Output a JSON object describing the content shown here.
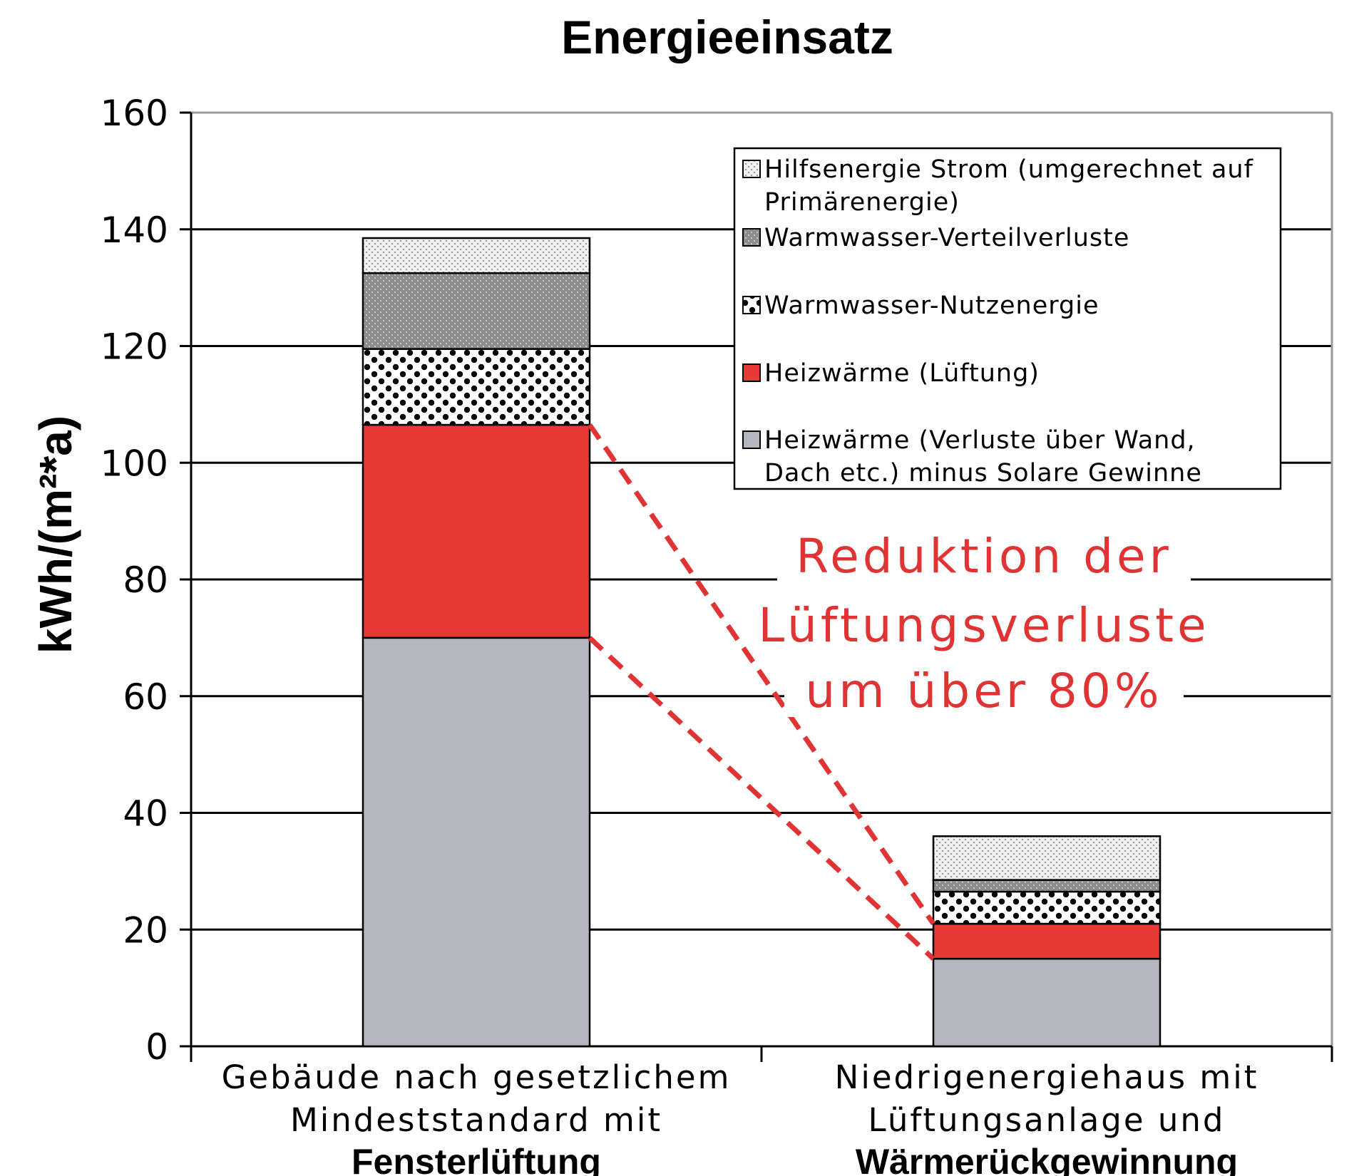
{
  "colors": {
    "heiz_wand": "#b5b7c0",
    "heiz_lueftung": "#e83a35",
    "ww_nutz": "#ffffff",
    "ww_verteil": "#8c8c8c",
    "hilfsenergie": "#e6e6e6",
    "annotation": "#e03434"
  },
  "chart_data": {
    "type": "bar",
    "stacked": true,
    "title": "Energieeinsatz",
    "ylabel": "kWh/(m²*a)",
    "xlabel": "",
    "ylim": [
      0,
      160
    ],
    "yticks": [
      "0",
      "20",
      "40",
      "60",
      "80",
      "100",
      "120",
      "140",
      "160"
    ],
    "grid": true,
    "legend_position": "top-right",
    "categories": [
      [
        "Gebäude nach gesetzlichem",
        "Mindeststandard mit",
        "Fensterlüftung"
      ],
      [
        "Niedrigenergiehaus mit",
        "Lüftungsanlage und",
        "Wärmerückgewinnung"
      ]
    ],
    "series": [
      {
        "name": "Heizwärme (Verluste über Wand, Dach etc.) minus Solare Gewinne",
        "legend_lines": [
          "Heizwärme (Verluste über Wand,",
          "Dach etc.) minus Solare Gewinne"
        ],
        "values": [
          70,
          15
        ],
        "color_key": "heiz_wand",
        "pattern": "solid"
      },
      {
        "name": "Heizwärme (Lüftung)",
        "legend_lines": [
          "Heizwärme (Lüftung)"
        ],
        "values": [
          36.5,
          6
        ],
        "color_key": "heiz_lueftung",
        "pattern": "solid"
      },
      {
        "name": "Warmwasser-Nutzenergie",
        "legend_lines": [
          "Warmwasser-Nutzenergie"
        ],
        "values": [
          13,
          5.5
        ],
        "color_key": "ww_nutz",
        "pattern": "dots-black"
      },
      {
        "name": "Warmwasser-Verteilverluste",
        "legend_lines": [
          "Warmwasser-Verteilverluste"
        ],
        "values": [
          13,
          2
        ],
        "color_key": "ww_verteil",
        "pattern": "dots-dark"
      },
      {
        "name": "Hilfsenergie Strom (umgerechnet auf Primärenergie)",
        "legend_lines": [
          "Hilfsenergie Strom (umgerechnet auf",
          "Primärenergie)"
        ],
        "values": [
          6,
          7.5
        ],
        "color_key": "hilfsenergie",
        "pattern": "dots-light"
      }
    ],
    "annotation": {
      "lines": [
        "Reduktion der",
        "Lüftungsverluste",
        "um über 80%"
      ]
    }
  }
}
